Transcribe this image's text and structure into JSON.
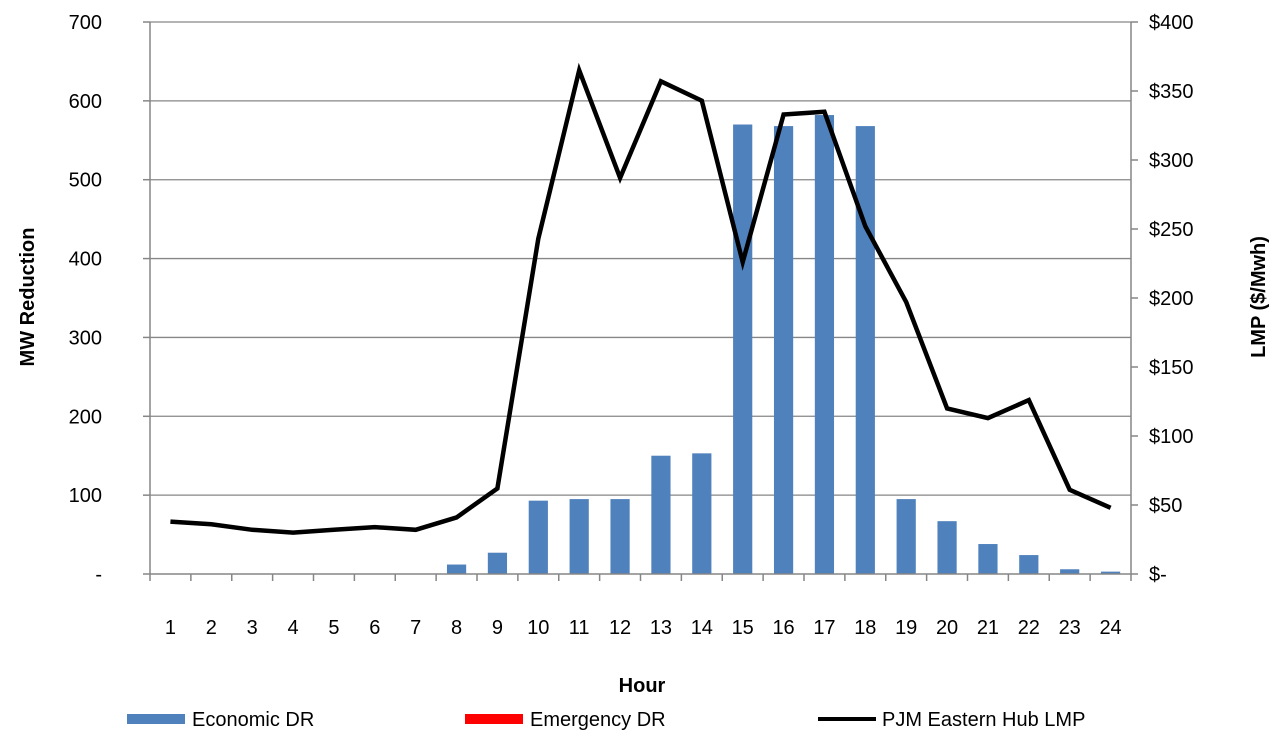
{
  "chart_data": {
    "type": "bar",
    "x_title": "Hour",
    "y_left_title": "MW Reduction",
    "y_right_title": "LMP ($/Mwh)",
    "categories": [
      "1",
      "2",
      "3",
      "4",
      "5",
      "6",
      "7",
      "8",
      "9",
      "10",
      "11",
      "12",
      "13",
      "14",
      "15",
      "16",
      "17",
      "18",
      "19",
      "20",
      "21",
      "22",
      "23",
      "24"
    ],
    "y_left_ticks": [
      {
        "value": 0,
        "label": "-"
      },
      {
        "value": 100,
        "label": "100"
      },
      {
        "value": 200,
        "label": "200"
      },
      {
        "value": 300,
        "label": "300"
      },
      {
        "value": 400,
        "label": "400"
      },
      {
        "value": 500,
        "label": "500"
      },
      {
        "value": 600,
        "label": "600"
      },
      {
        "value": 700,
        "label": "700"
      }
    ],
    "y_right_ticks": [
      {
        "value": 0,
        "label": "$-"
      },
      {
        "value": 50,
        "label": "$50"
      },
      {
        "value": 100,
        "label": "$100"
      },
      {
        "value": 150,
        "label": "$150"
      },
      {
        "value": 200,
        "label": "$200"
      },
      {
        "value": 250,
        "label": "$250"
      },
      {
        "value": 300,
        "label": "$300"
      },
      {
        "value": 350,
        "label": "$350"
      },
      {
        "value": 400,
        "label": "$400"
      }
    ],
    "y_left_lim": [
      0,
      700
    ],
    "y_right_lim": [
      0,
      400
    ],
    "grid": true,
    "legend_position": "bottom",
    "series": [
      {
        "name": "Economic DR",
        "kind": "bar",
        "axis": "left",
        "color": "#4f81bd",
        "values": [
          0,
          0,
          0,
          0,
          0,
          0,
          0,
          12,
          27,
          93,
          95,
          95,
          150,
          153,
          570,
          568,
          582,
          568,
          95,
          67,
          38,
          24,
          6,
          3
        ]
      },
      {
        "name": "Emergency DR",
        "kind": "bar",
        "axis": "left",
        "color": "#ff0000",
        "values": [
          0,
          0,
          0,
          0,
          0,
          0,
          0,
          0,
          0,
          0,
          0,
          0,
          0,
          0,
          0,
          0,
          0,
          0,
          0,
          0,
          0,
          0,
          0,
          0
        ]
      },
      {
        "name": "PJM Eastern Hub LMP",
        "kind": "line",
        "axis": "right",
        "color": "#000000",
        "values": [
          38,
          36,
          32,
          30,
          32,
          34,
          32,
          41,
          62,
          243,
          365,
          287,
          357,
          343,
          226,
          333,
          335,
          252,
          197,
          120,
          113,
          126,
          61,
          48
        ]
      }
    ]
  }
}
